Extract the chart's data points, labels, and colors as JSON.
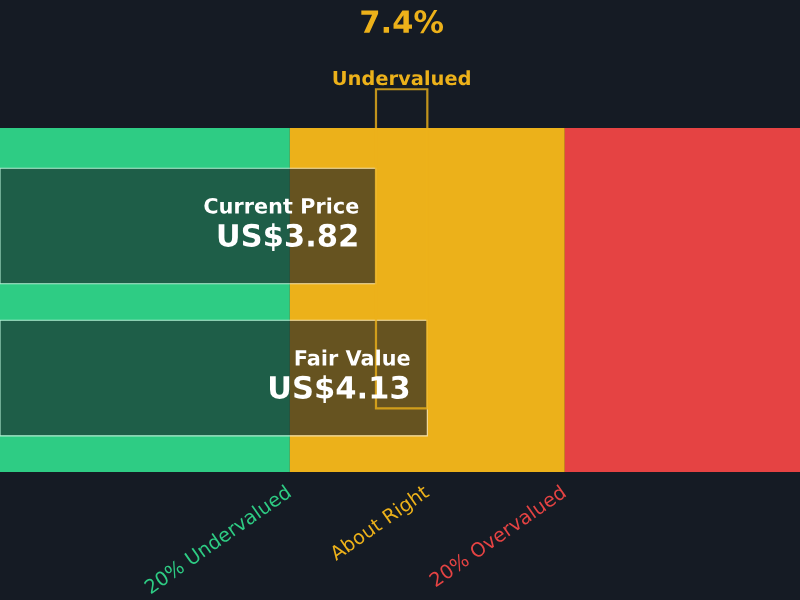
{
  "chart_data": {
    "type": "bar",
    "orientation": "horizontal",
    "categories": [
      "Current Price",
      "Fair Value"
    ],
    "values": [
      3.82,
      4.13
    ],
    "value_labels": [
      "US$3.82",
      "US$4.13"
    ],
    "color": "#151b24",
    "xlim": [
      1.55,
      6.38
    ],
    "annotations": [
      "7.4%",
      "Undervalued"
    ],
    "bands": [
      {
        "axis": "x",
        "from": 1.55,
        "to": 3.3,
        "label": "20% Undervalued",
        "color": "#2ecc84"
      },
      {
        "axis": "x",
        "from": 3.3,
        "to": 4.96,
        "label": "About Right",
        "color": "#ecb11a"
      },
      {
        "axis": "x",
        "from": 4.96,
        "to": 6.38,
        "label": "20% Overvalued",
        "color": "#e54343"
      }
    ]
  }
}
